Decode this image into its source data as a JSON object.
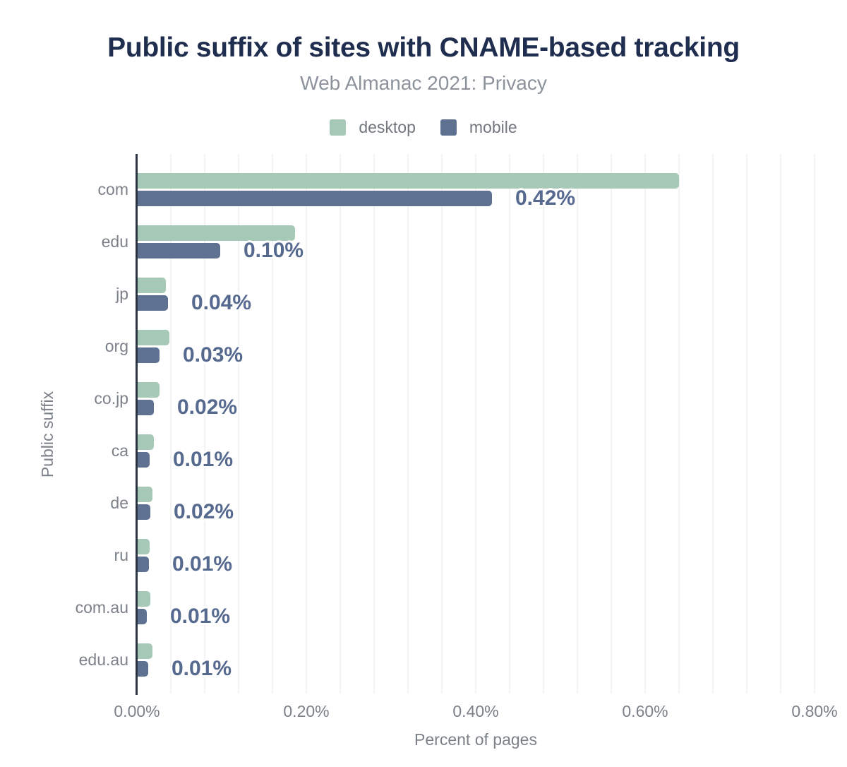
{
  "chart_data": {
    "type": "bar",
    "orientation": "horizontal",
    "title": "Public suffix of sites with CNAME-based tracking",
    "subtitle": "Web Almanac 2021: Privacy",
    "xlabel": "Percent of pages",
    "ylabel": "Public suffix",
    "xlim": [
      0,
      0.8
    ],
    "unit": "percent",
    "grid": true,
    "minor_grid_step": 0.04,
    "legend_position": "top",
    "xticks": {
      "values": [
        0,
        0.2,
        0.4,
        0.6,
        0.8
      ],
      "labels": [
        "0.00%",
        "0.20%",
        "0.40%",
        "0.60%",
        "0.80%"
      ]
    },
    "categories": [
      "com",
      "edu",
      "jp",
      "org",
      "co.jp",
      "ca",
      "de",
      "ru",
      "com.au",
      "edu.au"
    ],
    "series": [
      {
        "name": "desktop",
        "color": "#a5c9b6",
        "values": [
          0.64,
          0.187,
          0.034,
          0.038,
          0.027,
          0.02,
          0.018,
          0.015,
          0.016,
          0.018
        ]
      },
      {
        "name": "mobile",
        "color": "#5e7190",
        "values": [
          0.419,
          0.098,
          0.037,
          0.027,
          0.02,
          0.015,
          0.016,
          0.014,
          0.012,
          0.013
        ]
      }
    ],
    "data_labels": {
      "series": "mobile",
      "labels": [
        "0.42%",
        "0.10%",
        "0.04%",
        "0.03%",
        "0.02%",
        "0.01%",
        "0.02%",
        "0.01%",
        "0.01%",
        "0.01%"
      ]
    },
    "colors": {
      "title": "#1f2d4f",
      "subtitle": "#8d939c",
      "axis_text": "#7b8089",
      "axis_line": "#2b3440",
      "gridline": "#f3f3f3",
      "value_label": "#56698e",
      "background": "#ffffff"
    }
  }
}
